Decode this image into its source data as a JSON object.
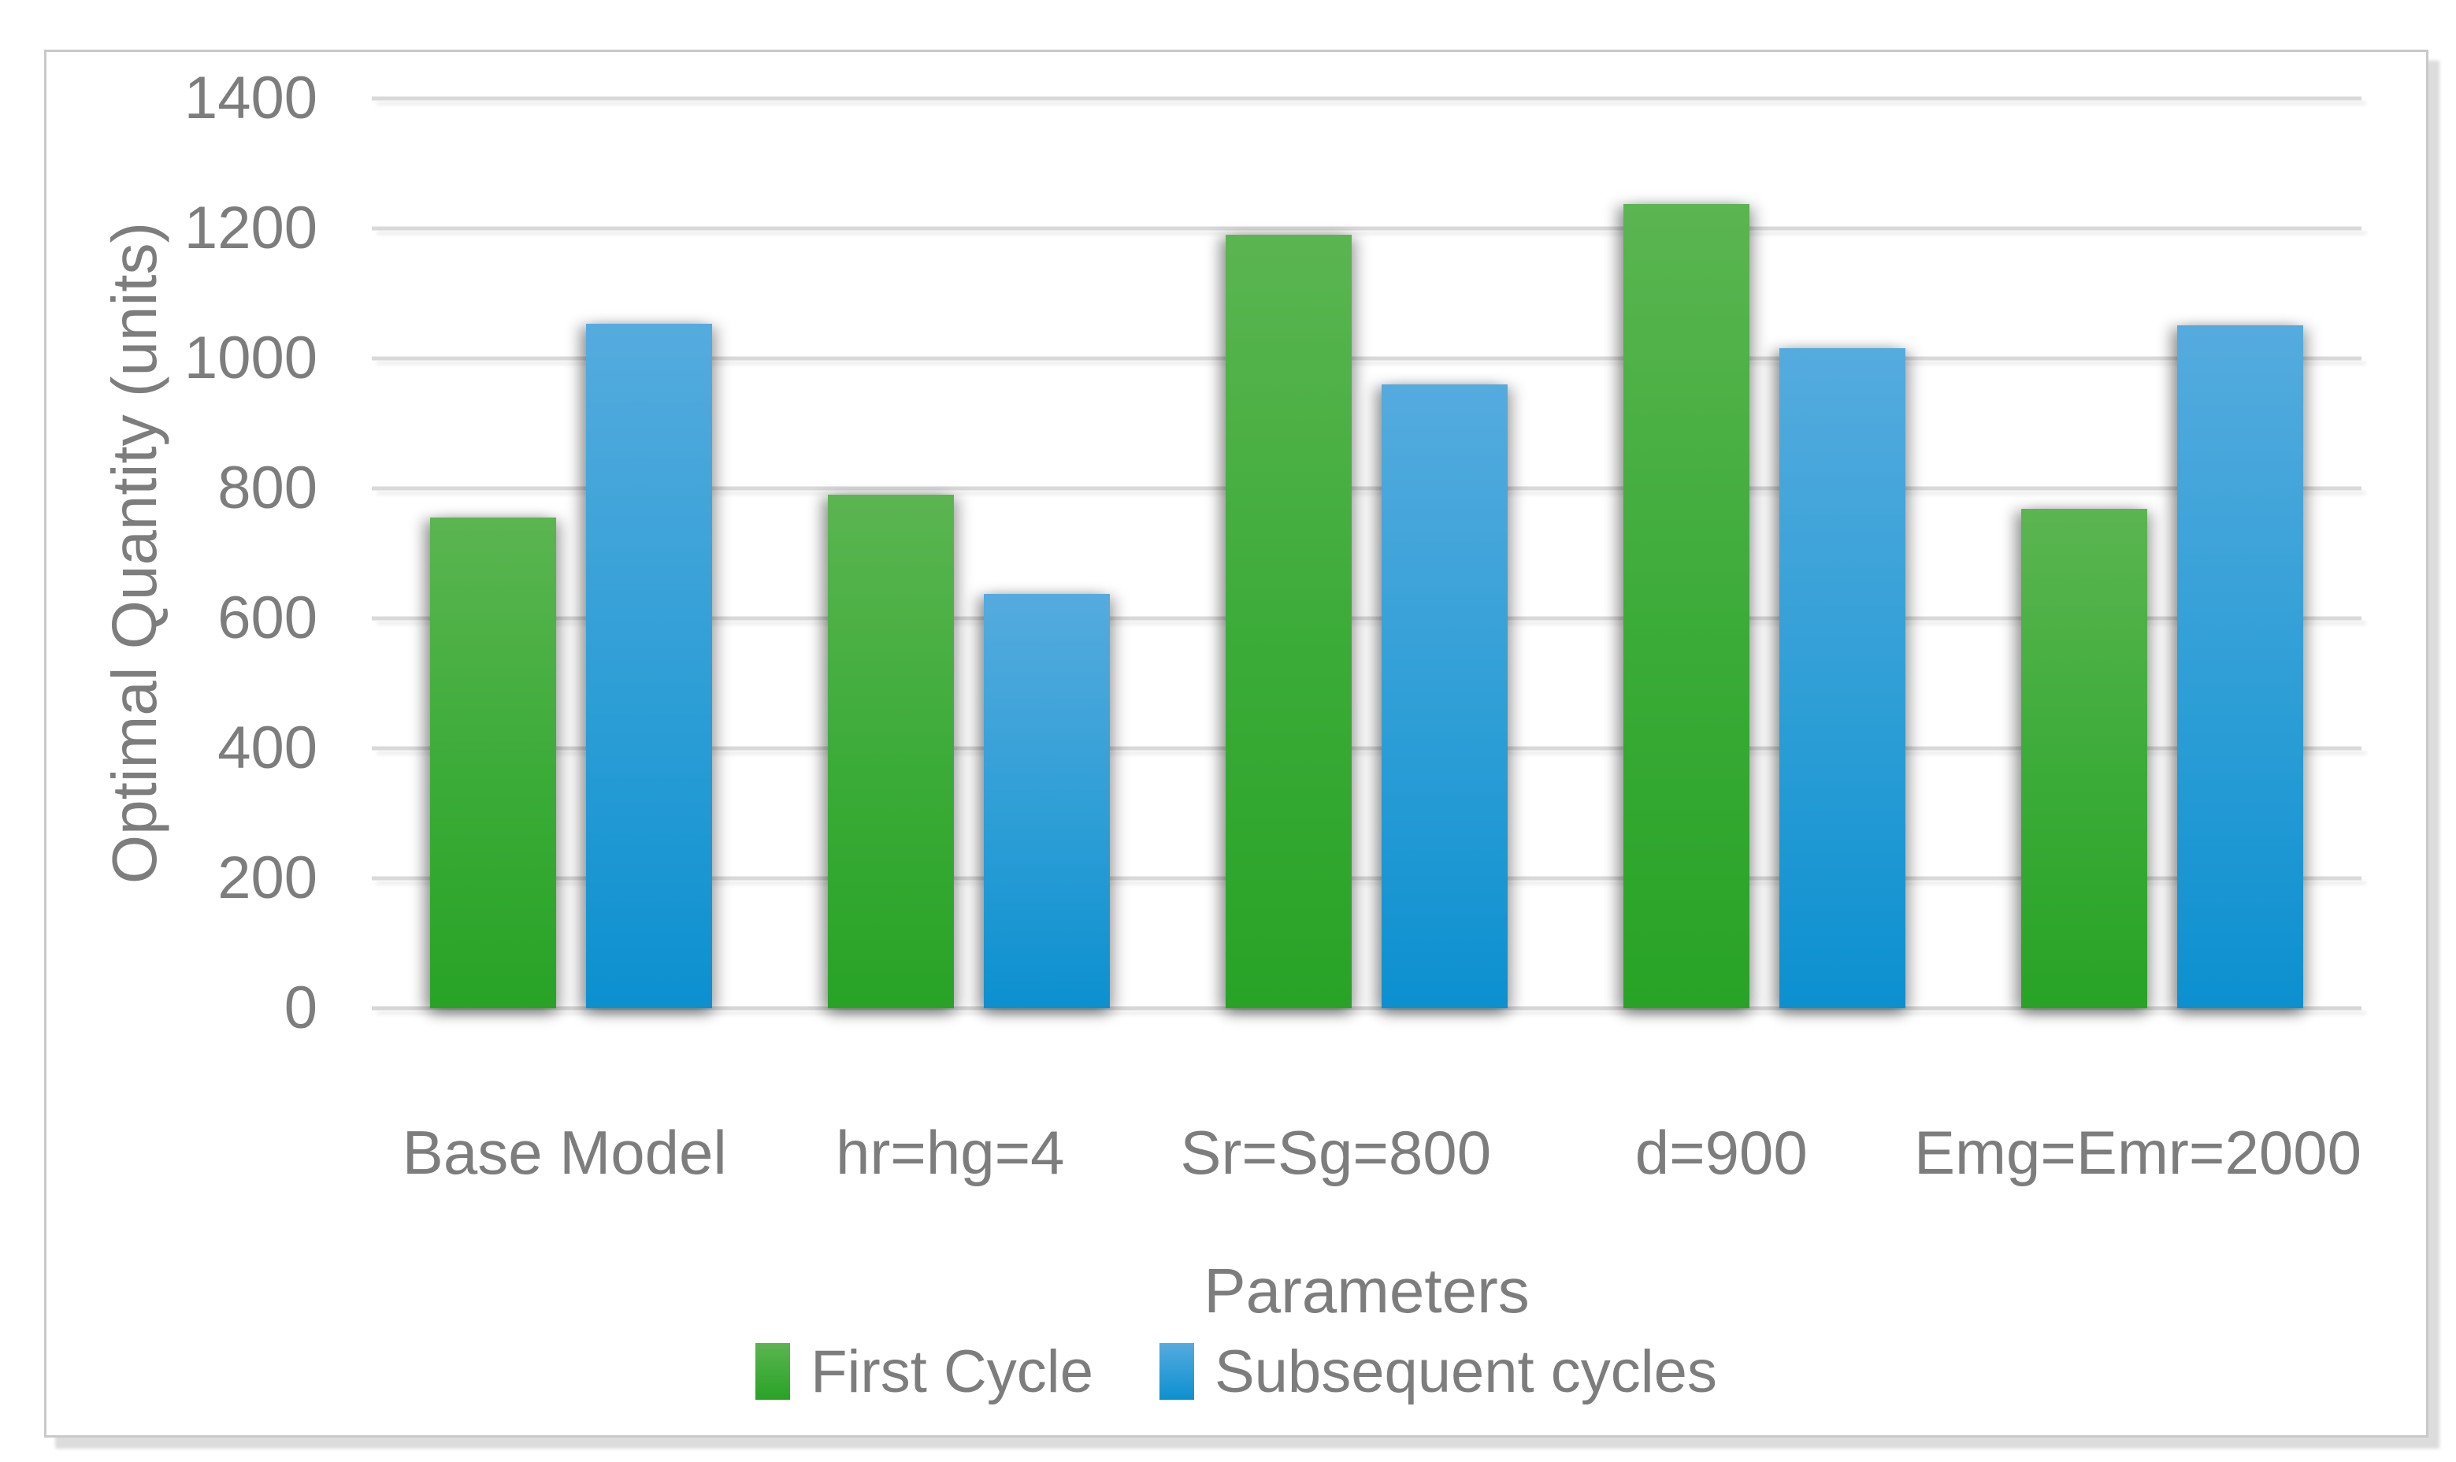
{
  "figure": {
    "y_axis_title": "Optimal Quantity (units)",
    "x_axis_title": "Parameters"
  },
  "legend": {
    "items": [
      "First Cycle",
      "Subsequent cycles"
    ]
  },
  "colors": {
    "first_cycle_top": "#5bb551",
    "first_cycle_bottom": "#28a326",
    "subsequent_cycles_top": "#55abde",
    "subsequent_cycles_bottom": "#0c90d0",
    "gridline": "#d9d9d9",
    "text": "#7d7d7d",
    "frame_border": "#c9c9c9",
    "frame_shadow": "#dcdcdc"
  },
  "chart_data": {
    "type": "bar",
    "title": "",
    "xlabel": "Parameters",
    "ylabel": "Optimal Quantity (units)",
    "categories": [
      "Base Model",
      "hr=hg=4",
      "Sr=Sg=800",
      "d=900",
      "Emg=Emr=2000"
    ],
    "series": [
      {
        "name": "First Cycle",
        "values": [
          755,
          790,
          1190,
          1237,
          768
        ]
      },
      {
        "name": "Subsequent cycles",
        "values": [
          1053,
          637,
          960,
          1016,
          1051
        ]
      }
    ],
    "ylim": [
      0,
      1400
    ],
    "y_ticks": [
      0,
      200,
      400,
      600,
      800,
      1000,
      1200,
      1400
    ],
    "grid": true,
    "gridline_interval": 200,
    "legend_position": "bottom-center",
    "bar_orientation": "vertical"
  }
}
